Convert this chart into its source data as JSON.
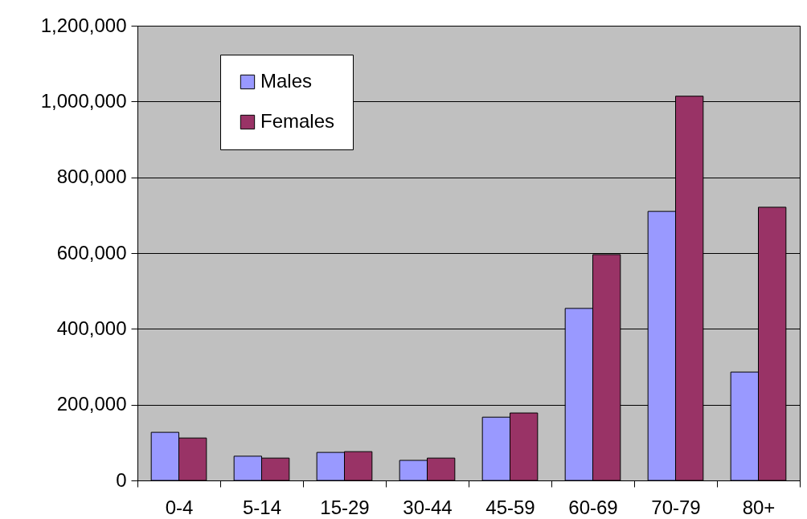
{
  "chart_data": {
    "type": "bar",
    "categories": [
      "0-4",
      "5-14",
      "15-29",
      "30-44",
      "45-59",
      "60-69",
      "70-79",
      "80+"
    ],
    "series": [
      {
        "name": "Males",
        "color": "#9999ff",
        "values": [
          127000,
          64000,
          74000,
          53000,
          167000,
          454000,
          710000,
          286000
        ]
      },
      {
        "name": "Females",
        "color": "#993366",
        "values": [
          112000,
          59000,
          76000,
          59000,
          178000,
          596000,
          1014000,
          721000
        ]
      }
    ],
    "ylim": [
      0,
      1200000
    ],
    "yticks": [
      0,
      {
        "value": 200000,
        "label": "200,000"
      },
      {
        "value": 400000,
        "label": "400,000"
      },
      {
        "value": 600000,
        "label": "600,000"
      },
      {
        "value": 800000,
        "label": "800,000"
      },
      {
        "value": 1000000,
        "label": "1,000,000"
      },
      {
        "value": 1200000,
        "label": "1,200,000"
      }
    ],
    "grid": "y",
    "legend": "top left"
  }
}
